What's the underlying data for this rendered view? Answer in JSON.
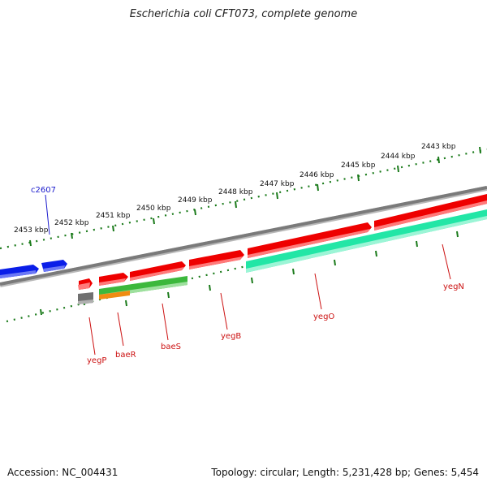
{
  "title": "Escherichia coli CFT073, complete genome",
  "footer": {
    "accession": "Accession: NC_004431",
    "summary": "Topology: circular; Length: 5,231,428 bp; Genes: 5,454"
  },
  "colors": {
    "backbone": "#7a7a7a",
    "ruler": "#1a7a1a",
    "forward_gene": "#ee0000",
    "reverse_gene_mint": "#22e6a6",
    "blue_gene": "#0a1ee8",
    "green_gene": "#3cb83c",
    "orange_gene": "#f08c12",
    "grey_gene": "#707070",
    "gene_label_red": "#cc1111",
    "gene_label_blue": "#1a1acc"
  },
  "ruler_labels": [
    "2453 kbp",
    "2452 kbp",
    "2451 kbp",
    "2450 kbp",
    "2449 kbp",
    "2448 kbp",
    "2447 kbp",
    "2446 kbp",
    "2445 kbp",
    "2444 kbp",
    "2443 kbp"
  ],
  "genes": [
    {
      "name": "c2607",
      "color_key": "gene_label_blue"
    },
    {
      "name": "yegP",
      "color_key": "gene_label_red"
    },
    {
      "name": "baeR",
      "color_key": "gene_label_red"
    },
    {
      "name": "baeS",
      "color_key": "gene_label_red"
    },
    {
      "name": "yegB",
      "color_key": "gene_label_red"
    },
    {
      "name": "yegO",
      "color_key": "gene_label_red"
    },
    {
      "name": "yegN",
      "color_key": "gene_label_red"
    }
  ]
}
